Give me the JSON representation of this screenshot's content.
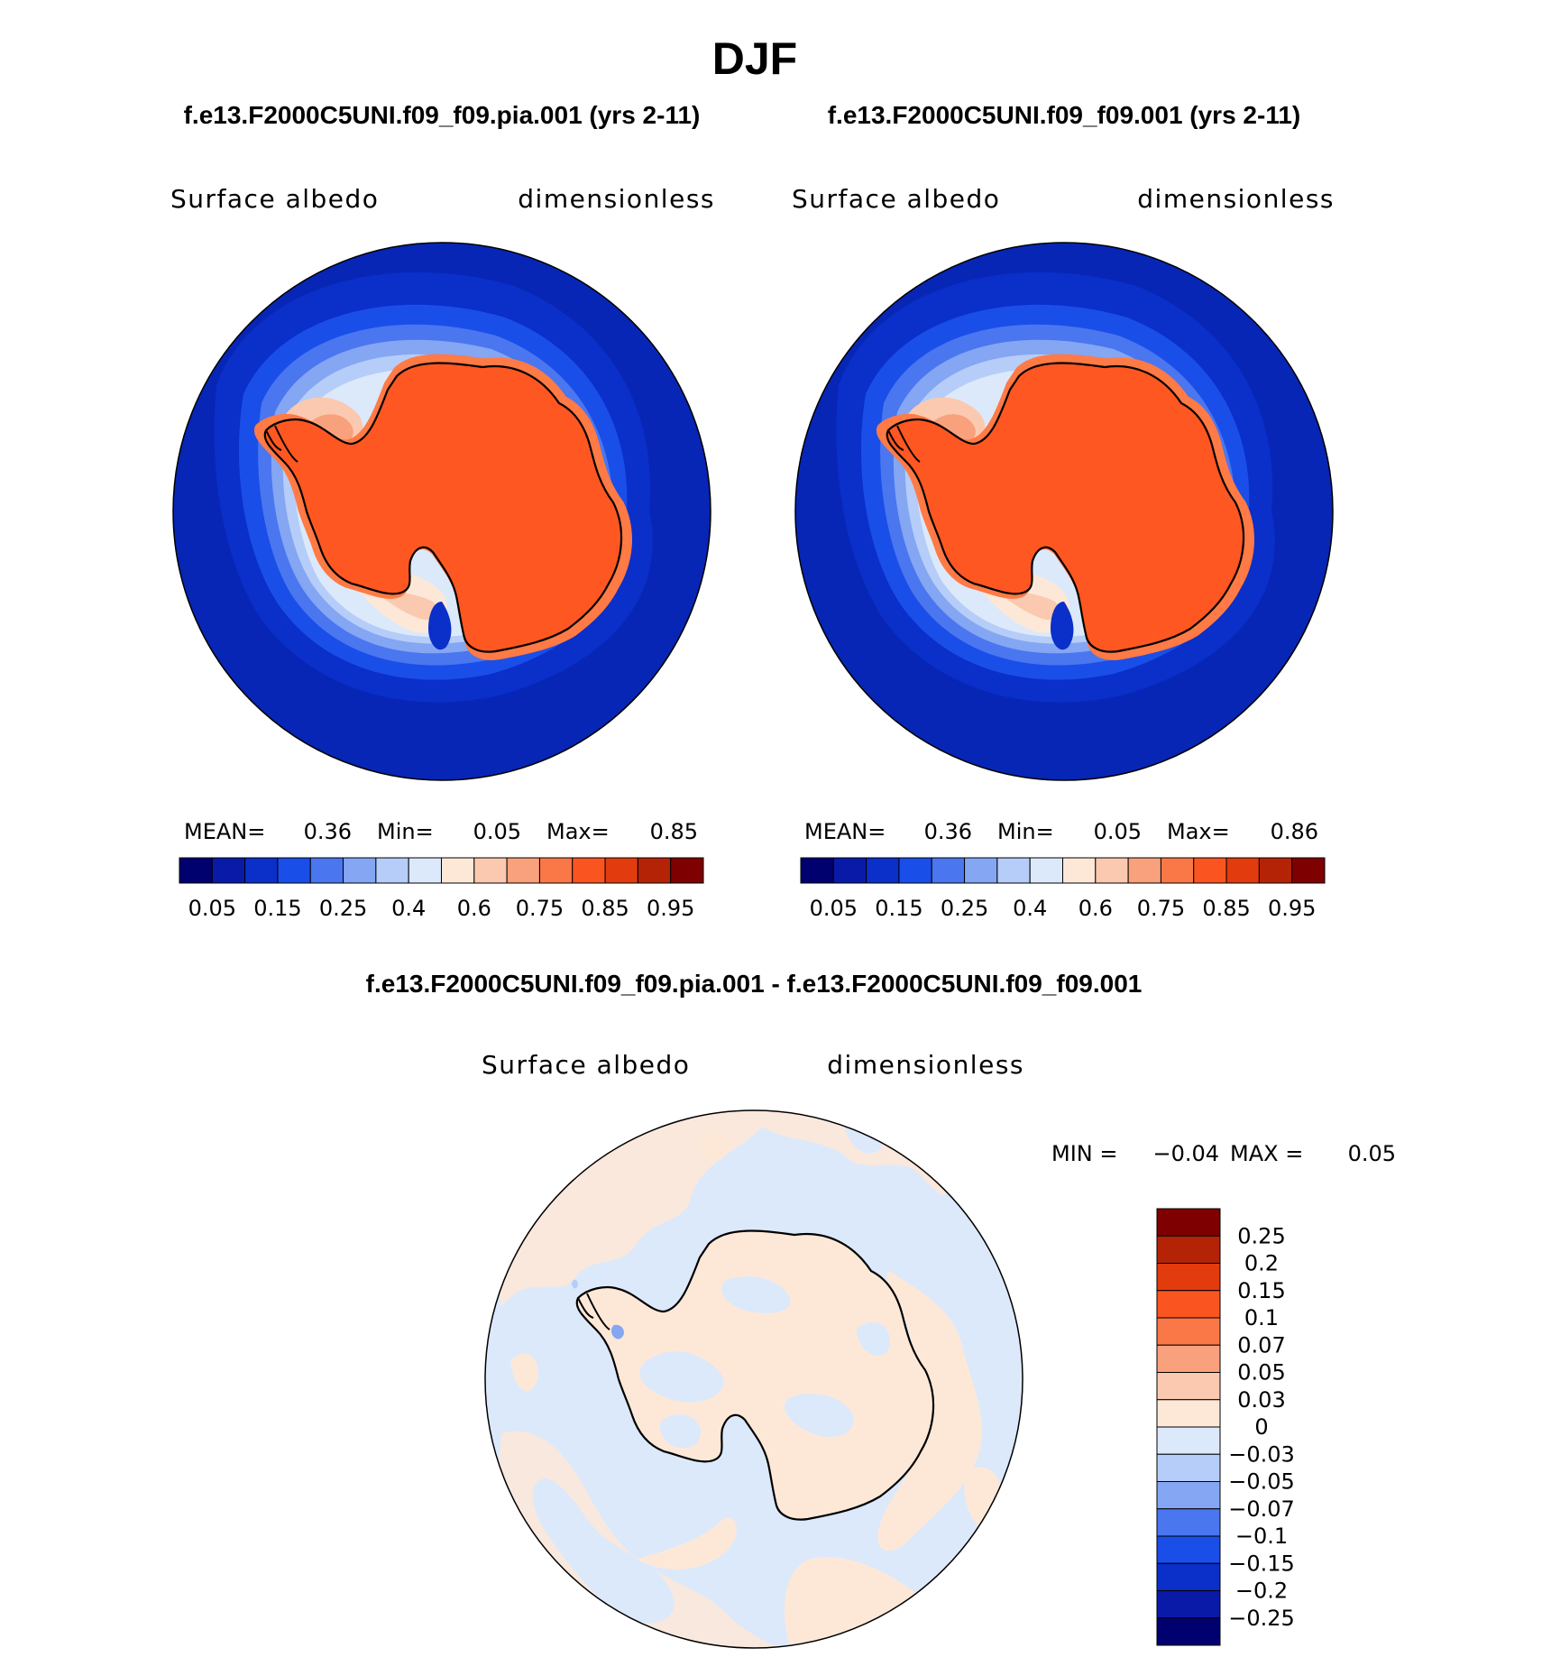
{
  "figure": {
    "title": "DJF",
    "colors": {
      "land_ice": "#ff5722",
      "land_ice_edge": "#ff7a45",
      "ocean_deep": "#0726b5",
      "coast": "#000000"
    }
  },
  "panels": [
    {
      "case_title": "f.e13.F2000C5UNI.f09_f09.pia.001 (yrs 2-11)",
      "var_label": "Surface albedo",
      "units_label": "dimensionless",
      "stats": {
        "mean_label": "MEAN=",
        "mean": "0.36",
        "min_label": "Min=",
        "min": "0.05",
        "max_label": "Max=",
        "max": "0.85"
      }
    },
    {
      "case_title": "f.e13.F2000C5UNI.f09_f09.001 (yrs 2-11)",
      "var_label": "Surface albedo",
      "units_label": "dimensionless",
      "stats": {
        "mean_label": "MEAN=",
        "mean": "0.36",
        "min_label": "Min=",
        "min": "0.05",
        "max_label": "Max=",
        "max": "0.86"
      }
    }
  ],
  "diff_panel": {
    "case_title": "f.e13.F2000C5UNI.f09_f09.pia.001 - f.e13.F2000C5UNI.f09_f09.001",
    "var_label": "Surface albedo",
    "units_label": "dimensionless",
    "stats": {
      "min_label": "MIN =",
      "min": "−0.04",
      "max_label": "MAX =",
      "max": "0.05"
    }
  },
  "colorbars": {
    "absolute": {
      "colors": [
        "#00006f",
        "#0a1aa8",
        "#0b2fc9",
        "#1a4ee8",
        "#4a76f0",
        "#84a6f3",
        "#b5cdf8",
        "#dce9fb",
        "#fde8d8",
        "#fbc9b0",
        "#f9a07c",
        "#fa7848",
        "#fa5520",
        "#e13b0e",
        "#b52306",
        "#7e0000"
      ],
      "tick_labels": [
        "0.05",
        "0.15",
        "0.25",
        "0.4",
        "0.6",
        "0.75",
        "0.85",
        "0.95"
      ]
    },
    "difference": {
      "colors": [
        "#7e0000",
        "#b52306",
        "#e13b0e",
        "#fa5520",
        "#fa7848",
        "#f9a07c",
        "#fbc9b0",
        "#fde8d8",
        "#dce9fb",
        "#b5cdf8",
        "#84a6f3",
        "#4a76f0",
        "#1a4ee8",
        "#0b2fc9",
        "#0a1aa8",
        "#00006f"
      ],
      "tick_labels": [
        "0.25",
        "0.2",
        "0.15",
        "0.1",
        "0.07",
        "0.05",
        "0.03",
        "0",
        "−0.03",
        "−0.05",
        "−0.07",
        "−0.1",
        "−0.15",
        "−0.2",
        "−0.25"
      ]
    }
  }
}
